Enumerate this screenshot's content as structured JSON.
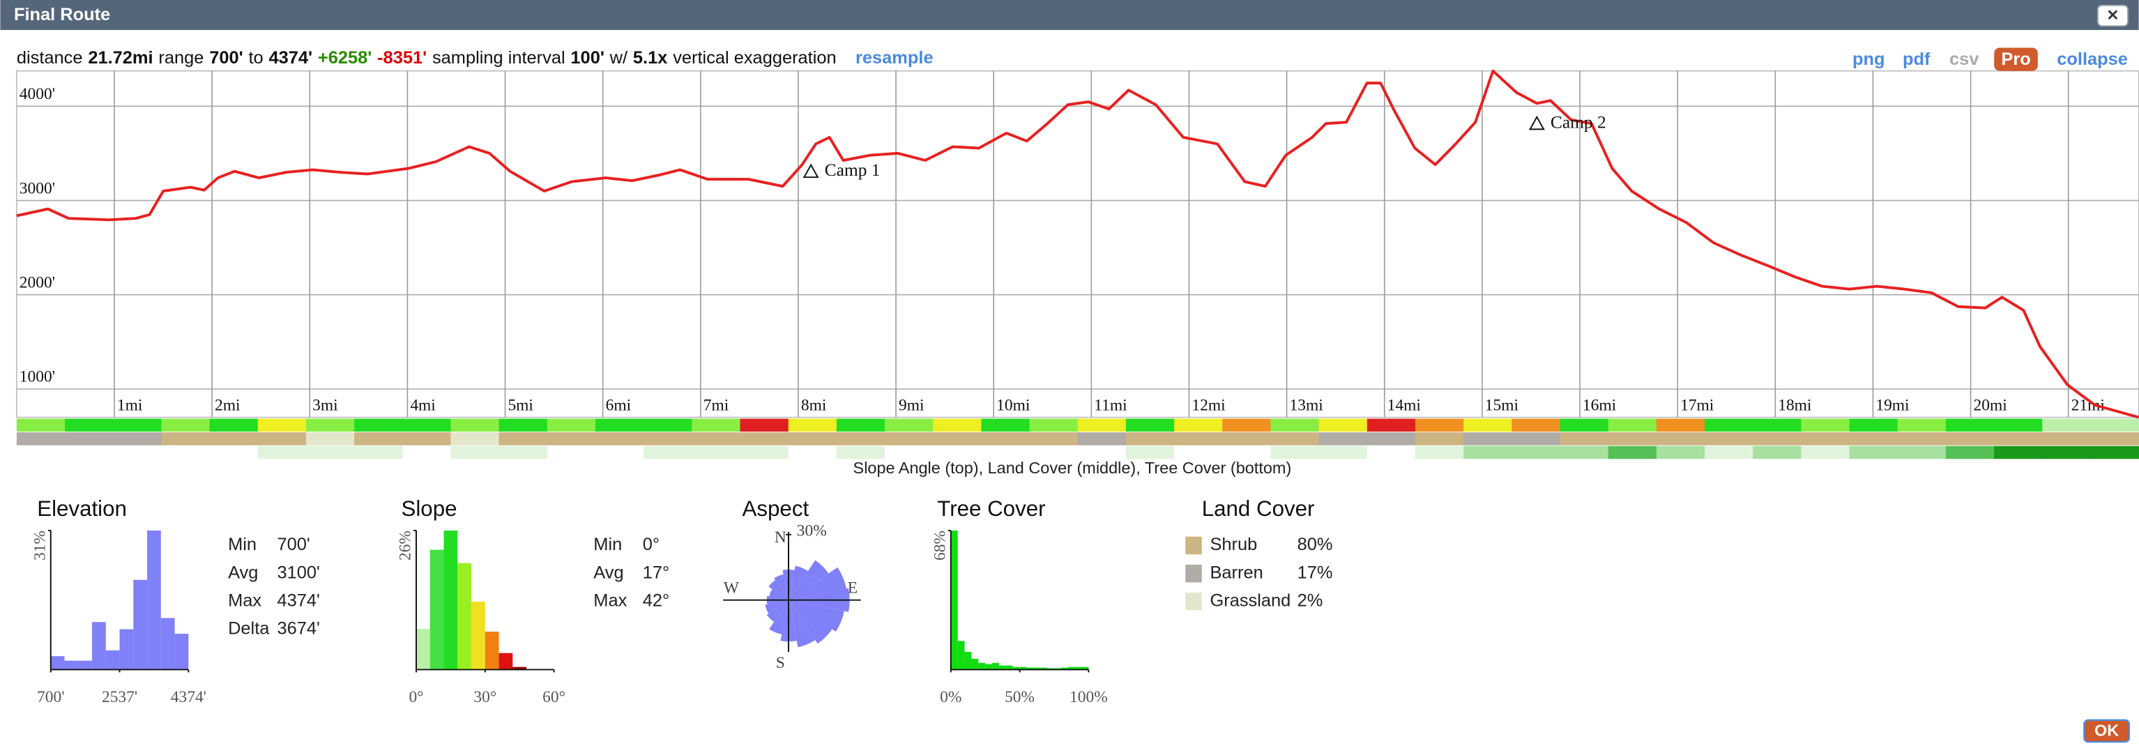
{
  "window": {
    "title": "Final Route",
    "close": "✕"
  },
  "toolbar": {
    "items": [
      {
        "text": "distance"
      },
      {
        "text": "21.72mi",
        "weight": "bold"
      },
      {
        "text": "range"
      },
      {
        "text": "700'",
        "weight": "bold"
      },
      {
        "text": "to"
      },
      {
        "text": "4374'",
        "weight": "bold"
      },
      {
        "text": "+6258'",
        "weight": "bold",
        "color": "#2a8a00"
      },
      {
        "text": "-8351'",
        "weight": "bold",
        "color": "#e00000"
      },
      {
        "text": "sampling interval"
      },
      {
        "text": "100'",
        "weight": "bold"
      },
      {
        "text": "w/"
      },
      {
        "text": "5.1x",
        "weight": "bold"
      },
      {
        "text": "vertical exaggeration"
      },
      {
        "text": "resample",
        "weight": "bold",
        "color": "#4a8ae0",
        "link": true
      }
    ],
    "links": [
      {
        "text": "png",
        "color": "#4a8ae0"
      },
      {
        "text": "pdf",
        "color": "#4a8ae0"
      },
      {
        "text": "csv",
        "color": "#aaaaaa"
      },
      {
        "text": "Pro",
        "color": "#ffffff",
        "badge": "#d05a2a"
      },
      {
        "text": "collapse",
        "color": "#4a8ae0"
      }
    ]
  },
  "chart_data": [
    {
      "type": "line",
      "color": "#e82020",
      "grid": true,
      "x": [
        0,
        0.32,
        0.53,
        0.95,
        1.22,
        1.36,
        1.5,
        1.78,
        1.92,
        2.06,
        2.23,
        2.48,
        2.76,
        3.03,
        3.31,
        3.59,
        4.01,
        4.29,
        4.63,
        4.84,
        5.05,
        5.4,
        5.68,
        6.03,
        6.3,
        6.58,
        6.79,
        7.07,
        7.49,
        7.84,
        8.04,
        8.18,
        8.32,
        8.46,
        8.74,
        9.02,
        9.3,
        9.58,
        9.85,
        10.13,
        10.34,
        10.55,
        10.76,
        10.97,
        11.18,
        11.38,
        11.66,
        11.94,
        12.29,
        12.57,
        12.78,
        12.99,
        13.26,
        13.4,
        13.61,
        13.82,
        13.96,
        14.1,
        14.31,
        14.52,
        14.73,
        14.93,
        15.11,
        15.35,
        15.56,
        15.7,
        15.91,
        16.12,
        16.33,
        16.53,
        16.81,
        17.09,
        17.37,
        17.65,
        17.93,
        18.2,
        18.48,
        18.76,
        19.04,
        19.32,
        19.6,
        19.87,
        20.15,
        20.32,
        20.54,
        20.71,
        20.99,
        21.27,
        21.72
      ],
      "values": [
        2838,
        2910,
        2810,
        2795,
        2810,
        2850,
        3100,
        3140,
        3110,
        3240,
        3310,
        3240,
        3300,
        3325,
        3300,
        3280,
        3340,
        3410,
        3570,
        3500,
        3310,
        3100,
        3200,
        3240,
        3210,
        3270,
        3325,
        3225,
        3225,
        3150,
        3380,
        3600,
        3670,
        3425,
        3480,
        3500,
        3425,
        3570,
        3555,
        3715,
        3630,
        3815,
        4015,
        4045,
        3970,
        4170,
        4015,
        3670,
        3600,
        3200,
        3150,
        3480,
        3670,
        3815,
        3830,
        4245,
        4245,
        3955,
        3555,
        3380,
        3600,
        3830,
        4374,
        4145,
        4030,
        4060,
        3855,
        3815,
        3340,
        3100,
        2910,
        2765,
        2550,
        2420,
        2305,
        2190,
        2090,
        2060,
        2090,
        2060,
        2020,
        1875,
        1860,
        1975,
        1835,
        1450,
        1045,
        830,
        700
      ],
      "xlim": [
        0,
        21.72
      ],
      "ylim": [
        700,
        4374
      ],
      "xticks": [
        {
          "value": 1,
          "label": "1mi"
        },
        {
          "value": 2,
          "label": "2mi"
        },
        {
          "value": 3,
          "label": "3mi"
        },
        {
          "value": 4,
          "label": "4mi"
        },
        {
          "value": 5,
          "label": "5mi"
        },
        {
          "value": 6,
          "label": "6mi"
        },
        {
          "value": 7,
          "label": "7mi"
        },
        {
          "value": 8,
          "label": "8mi"
        },
        {
          "value": 9,
          "label": "9mi"
        },
        {
          "value": 10,
          "label": "10mi"
        },
        {
          "value": 11,
          "label": "11mi"
        },
        {
          "value": 12,
          "label": "12mi"
        },
        {
          "value": 13,
          "label": "13mi"
        },
        {
          "value": 14,
          "label": "14mi"
        },
        {
          "value": 15,
          "label": "15mi"
        },
        {
          "value": 16,
          "label": "16mi"
        },
        {
          "value": 17,
          "label": "17mi"
        },
        {
          "value": 18,
          "label": "18mi"
        },
        {
          "value": 19,
          "label": "19mi"
        },
        {
          "value": 20,
          "label": "20mi"
        },
        {
          "value": 21,
          "label": "21mi"
        }
      ],
      "yticks": [
        {
          "value": 1000,
          "label": "1000'"
        },
        {
          "value": 2000,
          "label": "2000'"
        },
        {
          "value": 3000,
          "label": "3000'"
        },
        {
          "value": 4000,
          "label": "4000'"
        }
      ],
      "annotations": [
        {
          "x": 8.13,
          "label": "Camp 1"
        },
        {
          "x": 15.56,
          "label": "Camp 2"
        }
      ],
      "strips": [
        {
          "colors": [
            "#88ee44",
            "#22dd22",
            "#22dd22",
            "#88ee44",
            "#22dd22",
            "#eeee22",
            "#88ee44",
            "#22dd22",
            "#22dd22",
            "#88ee44",
            "#22dd22",
            "#88ee44",
            "#22dd22",
            "#22dd22",
            "#88ee44",
            "#e02020",
            "#eeee22",
            "#22dd22",
            "#88ee44",
            "#eeee22",
            "#22dd22",
            "#88ee44",
            "#eeee22",
            "#22dd22",
            "#eeee22",
            "#f09020",
            "#88ee44",
            "#eeee22",
            "#e02020",
            "#f09020",
            "#eeee22",
            "#f09020",
            "#22dd22",
            "#88ee44",
            "#f09020",
            "#22dd22",
            "#22dd22",
            "#88ee44",
            "#22dd22",
            "#88ee44",
            "#22dd22",
            "#22dd22",
            "#bbf0aa",
            "#bbf0aa"
          ]
        },
        {
          "colors": [
            "#b0aba5",
            "#b0aba5",
            "#b0aba5",
            "#cdb483",
            "#cdb483",
            "#cdb483",
            "#e4e6cc",
            "#cdb483",
            "#cdb483",
            "#e4e6cc",
            "#cdb483",
            "#cdb483",
            "#cdb483",
            "#cdb483",
            "#cdb483",
            "#cdb483",
            "#cdb483",
            "#cdb483",
            "#cdb483",
            "#cdb483",
            "#cdb483",
            "#cdb483",
            "#b0aba5",
            "#cdb483",
            "#cdb483",
            "#cdb483",
            "#cdb483",
            "#b0aba5",
            "#b0aba5",
            "#cdb483",
            "#b0aba5",
            "#b0aba5",
            "#cdb483",
            "#cdb483",
            "#cdb483",
            "#cdb483",
            "#cdb483",
            "#cdb483",
            "#cdb483",
            "#cdb483",
            "#cdb483",
            "#cdb483",
            "#cdb483",
            "#cdb483"
          ]
        },
        {
          "colors": [
            "#ffffff",
            "#ffffff",
            "#ffffff",
            "#ffffff",
            "#ffffff",
            "#e0f4dc",
            "#e0f4dc",
            "#e0f4dc",
            "#ffffff",
            "#e0f4dc",
            "#e0f4dc",
            "#ffffff",
            "#ffffff",
            "#e0f4dc",
            "#e0f4dc",
            "#e0f4dc",
            "#ffffff",
            "#e0f4dc",
            "#ffffff",
            "#ffffff",
            "#ffffff",
            "#ffffff",
            "#ffffff",
            "#e0f4dc",
            "#ffffff",
            "#ffffff",
            "#e0f4dc",
            "#e0f4dc",
            "#ffffff",
            "#e0f4dc",
            "#a8e0a0",
            "#a8e0a0",
            "#a8e0a0",
            "#55c055",
            "#a8e0a0",
            "#e0f4dc",
            "#a8e0a0",
            "#e0f4dc",
            "#a8e0a0",
            "#a8e0a0",
            "#55c055",
            "#1a9a1a",
            "#1a9a1a",
            "#1a9a1a"
          ]
        }
      ],
      "strips_caption": "Slope Angle (top), Land Cover (middle), Tree Cover (bottom)"
    },
    {
      "type": "histogram",
      "title": "Elevation",
      "color": "#8080f8",
      "bins": [
        700,
        1067.4,
        1434.8,
        1802.2,
        2169.6,
        2537,
        2904.4,
        3271.8,
        3639.2,
        4006.6,
        4374
      ],
      "values": [
        3,
        2,
        2,
        10.6,
        4.3,
        9,
        20,
        31,
        11.5,
        8
      ],
      "xlim": [
        700,
        4374
      ],
      "ylim": [
        0,
        31
      ],
      "xticks": [
        {
          "value": 700,
          "label": "700'"
        },
        {
          "value": 2537,
          "label": "2537'"
        },
        {
          "value": 4374,
          "label": "4374'"
        }
      ],
      "yticks": [
        {
          "value": 31,
          "label": "31%"
        }
      ],
      "stats": [
        {
          "label": "Min",
          "value": "700'"
        },
        {
          "label": "Avg",
          "value": "3100'"
        },
        {
          "label": "Max",
          "value": "4374'"
        },
        {
          "label": "Delta",
          "value": "3674'"
        }
      ]
    },
    {
      "type": "histogram",
      "title": "Slope",
      "bins": [
        0,
        6,
        12,
        18,
        24,
        30,
        36,
        42,
        48,
        54,
        60
      ],
      "values": [
        7.6,
        22.4,
        26,
        19.9,
        12.7,
        7.1,
        3.1,
        0.5,
        0,
        0
      ],
      "colors": [
        "#b8f0a8",
        "#44e044",
        "#22dd22",
        "#99ee22",
        "#f0e020",
        "#f08010",
        "#e01010",
        "#a00000",
        "#a00000",
        "#a00000"
      ],
      "xlim": [
        0,
        60
      ],
      "ylim": [
        0,
        26
      ],
      "xticks": [
        {
          "value": 0,
          "label": "0°"
        },
        {
          "value": 30,
          "label": "30°"
        },
        {
          "value": 60,
          "label": "60°"
        }
      ],
      "yticks": [
        {
          "value": 26,
          "label": "26%"
        }
      ],
      "stats": [
        {
          "label": "Min",
          "value": "0°"
        },
        {
          "label": "Avg",
          "value": "17°"
        },
        {
          "label": "Max",
          "value": "42°"
        }
      ]
    },
    {
      "type": "polar",
      "title": "Aspect",
      "color": "#8080f8",
      "directions": [
        "N",
        null,
        null,
        null,
        "E",
        null,
        null,
        null,
        "S",
        null,
        null,
        null,
        "W",
        null,
        null,
        null
      ],
      "values": [
        14,
        16,
        22,
        27,
        28,
        26,
        24,
        22,
        19,
        16,
        12,
        11,
        10,
        9,
        11,
        12
      ],
      "rlim": [
        0,
        30
      ],
      "rticks": [
        {
          "value": 30,
          "label": "30%"
        }
      ]
    },
    {
      "type": "histogram",
      "title": "Tree Cover",
      "color": "#11dd11",
      "bins": [
        0,
        5,
        10,
        15,
        20,
        25,
        30,
        35,
        40,
        45,
        50,
        55,
        60,
        65,
        70,
        75,
        80,
        85,
        90,
        95,
        100
      ],
      "values": [
        68,
        14,
        8.7,
        5.3,
        3.3,
        2.7,
        3.3,
        2,
        2,
        1.3,
        1.3,
        1,
        1,
        1,
        0.7,
        0.7,
        1,
        1.3,
        1.3,
        1.3
      ],
      "xlim": [
        0,
        100
      ],
      "ylim": [
        0,
        68
      ],
      "xticks": [
        {
          "value": 0,
          "label": "0%"
        },
        {
          "value": 50,
          "label": "50%"
        },
        {
          "value": 100,
          "label": "100%"
        }
      ],
      "yticks": [
        {
          "value": 68,
          "label": "68%"
        }
      ]
    }
  ],
  "land_cover": {
    "title": "Land Cover",
    "items": [
      {
        "name": "Shrub",
        "share": "80%",
        "color": "#cdb483"
      },
      {
        "name": "Barren",
        "share": "17%",
        "color": "#b0aba5"
      },
      {
        "name": "Grassland",
        "share": "2%",
        "color": "#e4e6cc"
      }
    ]
  },
  "ok": "OK"
}
